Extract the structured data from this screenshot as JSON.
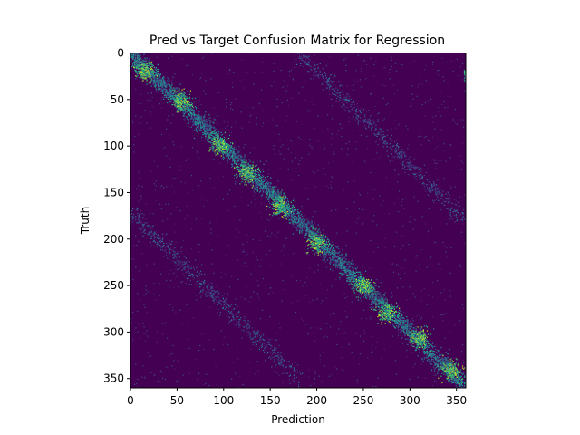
{
  "chart_data": {
    "type": "heatmap",
    "title": "Pred vs Target Confusion Matrix for Regression",
    "xlabel": "Prediction",
    "ylabel": "Truth",
    "xlim": [
      0,
      360
    ],
    "ylim": [
      360,
      0
    ],
    "x_ticks": [
      0,
      50,
      100,
      150,
      200,
      250,
      300,
      350
    ],
    "y_ticks": [
      0,
      50,
      100,
      150,
      200,
      250,
      300,
      350
    ],
    "colormap": "viridis",
    "background_color": "#440154",
    "grid": false,
    "legend": false,
    "description_of_structure": {
      "main_diagonal": "dense band from (0,0) to (360,360), brightest near (15,20), (55,50), (95,100), (160,165), (275,280), (345,340)",
      "secondary_lower_band": "faint band from about (0,170) to (180,340)",
      "secondary_upper_band": "faint band from about (180,0) to (360,190)"
    }
  }
}
